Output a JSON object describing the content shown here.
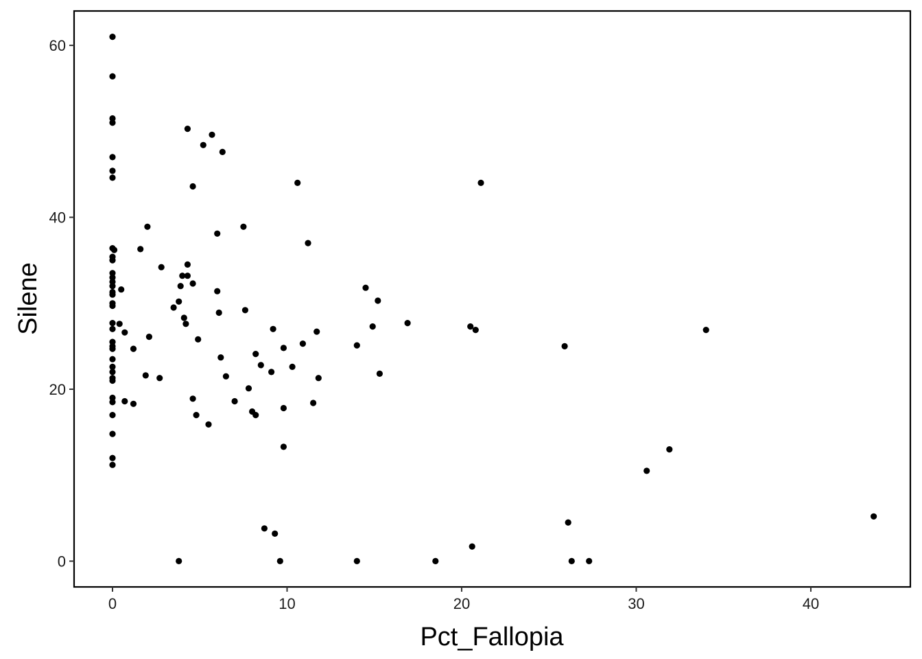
{
  "chart_data": {
    "type": "scatter",
    "title": "",
    "xlabel": "Pct_Fallopia",
    "ylabel": "Silene",
    "xlim": [
      -2.2,
      45.7
    ],
    "ylim": [
      -3.0,
      64.0
    ],
    "x_ticks": [
      0,
      10,
      20,
      30,
      40
    ],
    "y_ticks": [
      0,
      20,
      40,
      60
    ],
    "grid": false,
    "legend": "none",
    "point_color": "#000000",
    "points": [
      [
        0,
        61.0
      ],
      [
        0,
        56.4
      ],
      [
        0,
        51.5
      ],
      [
        0,
        51.0
      ],
      [
        0,
        47.0
      ],
      [
        0,
        45.4
      ],
      [
        0,
        44.6
      ],
      [
        0,
        36.4
      ],
      [
        0,
        35.4
      ],
      [
        0,
        35.0
      ],
      [
        0,
        33.5
      ],
      [
        0,
        33.0
      ],
      [
        0,
        32.5
      ],
      [
        0,
        32.0
      ],
      [
        0,
        31.3
      ],
      [
        0,
        31.0
      ],
      [
        0,
        30.0
      ],
      [
        0,
        29.7
      ],
      [
        0,
        27.7
      ],
      [
        0,
        27.0
      ],
      [
        0,
        25.5
      ],
      [
        0,
        25.0
      ],
      [
        0,
        24.7
      ],
      [
        0,
        23.5
      ],
      [
        0,
        22.6
      ],
      [
        0,
        22.0
      ],
      [
        0,
        21.3
      ],
      [
        0,
        21.0
      ],
      [
        0,
        19.0
      ],
      [
        0,
        18.5
      ],
      [
        0,
        17.0
      ],
      [
        0,
        14.8
      ],
      [
        0,
        12.0
      ],
      [
        0,
        11.2
      ],
      [
        0.1,
        36.2
      ],
      [
        0.4,
        27.6
      ],
      [
        0.5,
        31.6
      ],
      [
        0.7,
        26.6
      ],
      [
        0.7,
        18.6
      ],
      [
        1.2,
        24.7
      ],
      [
        1.2,
        18.3
      ],
      [
        1.6,
        36.3
      ],
      [
        1.9,
        21.6
      ],
      [
        2.0,
        38.9
      ],
      [
        2.1,
        26.1
      ],
      [
        2.7,
        21.3
      ],
      [
        2.8,
        34.2
      ],
      [
        3.5,
        29.5
      ],
      [
        3.8,
        30.2
      ],
      [
        3.9,
        32.0
      ],
      [
        3.8,
        0.0
      ],
      [
        4.0,
        33.2
      ],
      [
        4.1,
        28.3
      ],
      [
        4.2,
        27.6
      ],
      [
        4.3,
        33.2
      ],
      [
        4.3,
        34.5
      ],
      [
        4.3,
        50.3
      ],
      [
        4.6,
        43.6
      ],
      [
        4.6,
        32.3
      ],
      [
        4.6,
        18.9
      ],
      [
        4.8,
        17.0
      ],
      [
        4.9,
        25.8
      ],
      [
        5.2,
        48.4
      ],
      [
        5.5,
        15.9
      ],
      [
        5.7,
        49.6
      ],
      [
        6.0,
        38.1
      ],
      [
        6.0,
        31.4
      ],
      [
        6.1,
        28.9
      ],
      [
        6.2,
        23.7
      ],
      [
        6.3,
        47.6
      ],
      [
        6.5,
        21.5
      ],
      [
        7.0,
        18.6
      ],
      [
        7.5,
        38.9
      ],
      [
        7.6,
        29.2
      ],
      [
        7.8,
        20.1
      ],
      [
        8.0,
        17.4
      ],
      [
        8.2,
        17.0
      ],
      [
        8.2,
        24.1
      ],
      [
        8.5,
        22.8
      ],
      [
        8.7,
        3.8
      ],
      [
        9.1,
        22.0
      ],
      [
        9.2,
        27.0
      ],
      [
        9.3,
        3.2
      ],
      [
        9.6,
        0.0
      ],
      [
        9.8,
        24.8
      ],
      [
        9.8,
        17.8
      ],
      [
        9.8,
        13.3
      ],
      [
        10.3,
        22.6
      ],
      [
        10.6,
        44.0
      ],
      [
        10.9,
        25.3
      ],
      [
        11.2,
        37.0
      ],
      [
        11.5,
        18.4
      ],
      [
        11.7,
        26.7
      ],
      [
        11.8,
        21.3
      ],
      [
        14.0,
        25.1
      ],
      [
        14.0,
        0.0
      ],
      [
        14.5,
        31.8
      ],
      [
        14.9,
        27.3
      ],
      [
        15.2,
        30.3
      ],
      [
        15.3,
        21.8
      ],
      [
        16.9,
        27.7
      ],
      [
        18.5,
        0.0
      ],
      [
        20.5,
        27.3
      ],
      [
        20.6,
        1.7
      ],
      [
        20.8,
        26.9
      ],
      [
        21.1,
        44.0
      ],
      [
        25.9,
        25.0
      ],
      [
        26.1,
        4.5
      ],
      [
        26.3,
        0.0
      ],
      [
        27.3,
        0.0
      ],
      [
        30.6,
        10.5
      ],
      [
        31.9,
        13.0
      ],
      [
        34.0,
        26.9
      ],
      [
        43.6,
        5.2
      ]
    ]
  }
}
